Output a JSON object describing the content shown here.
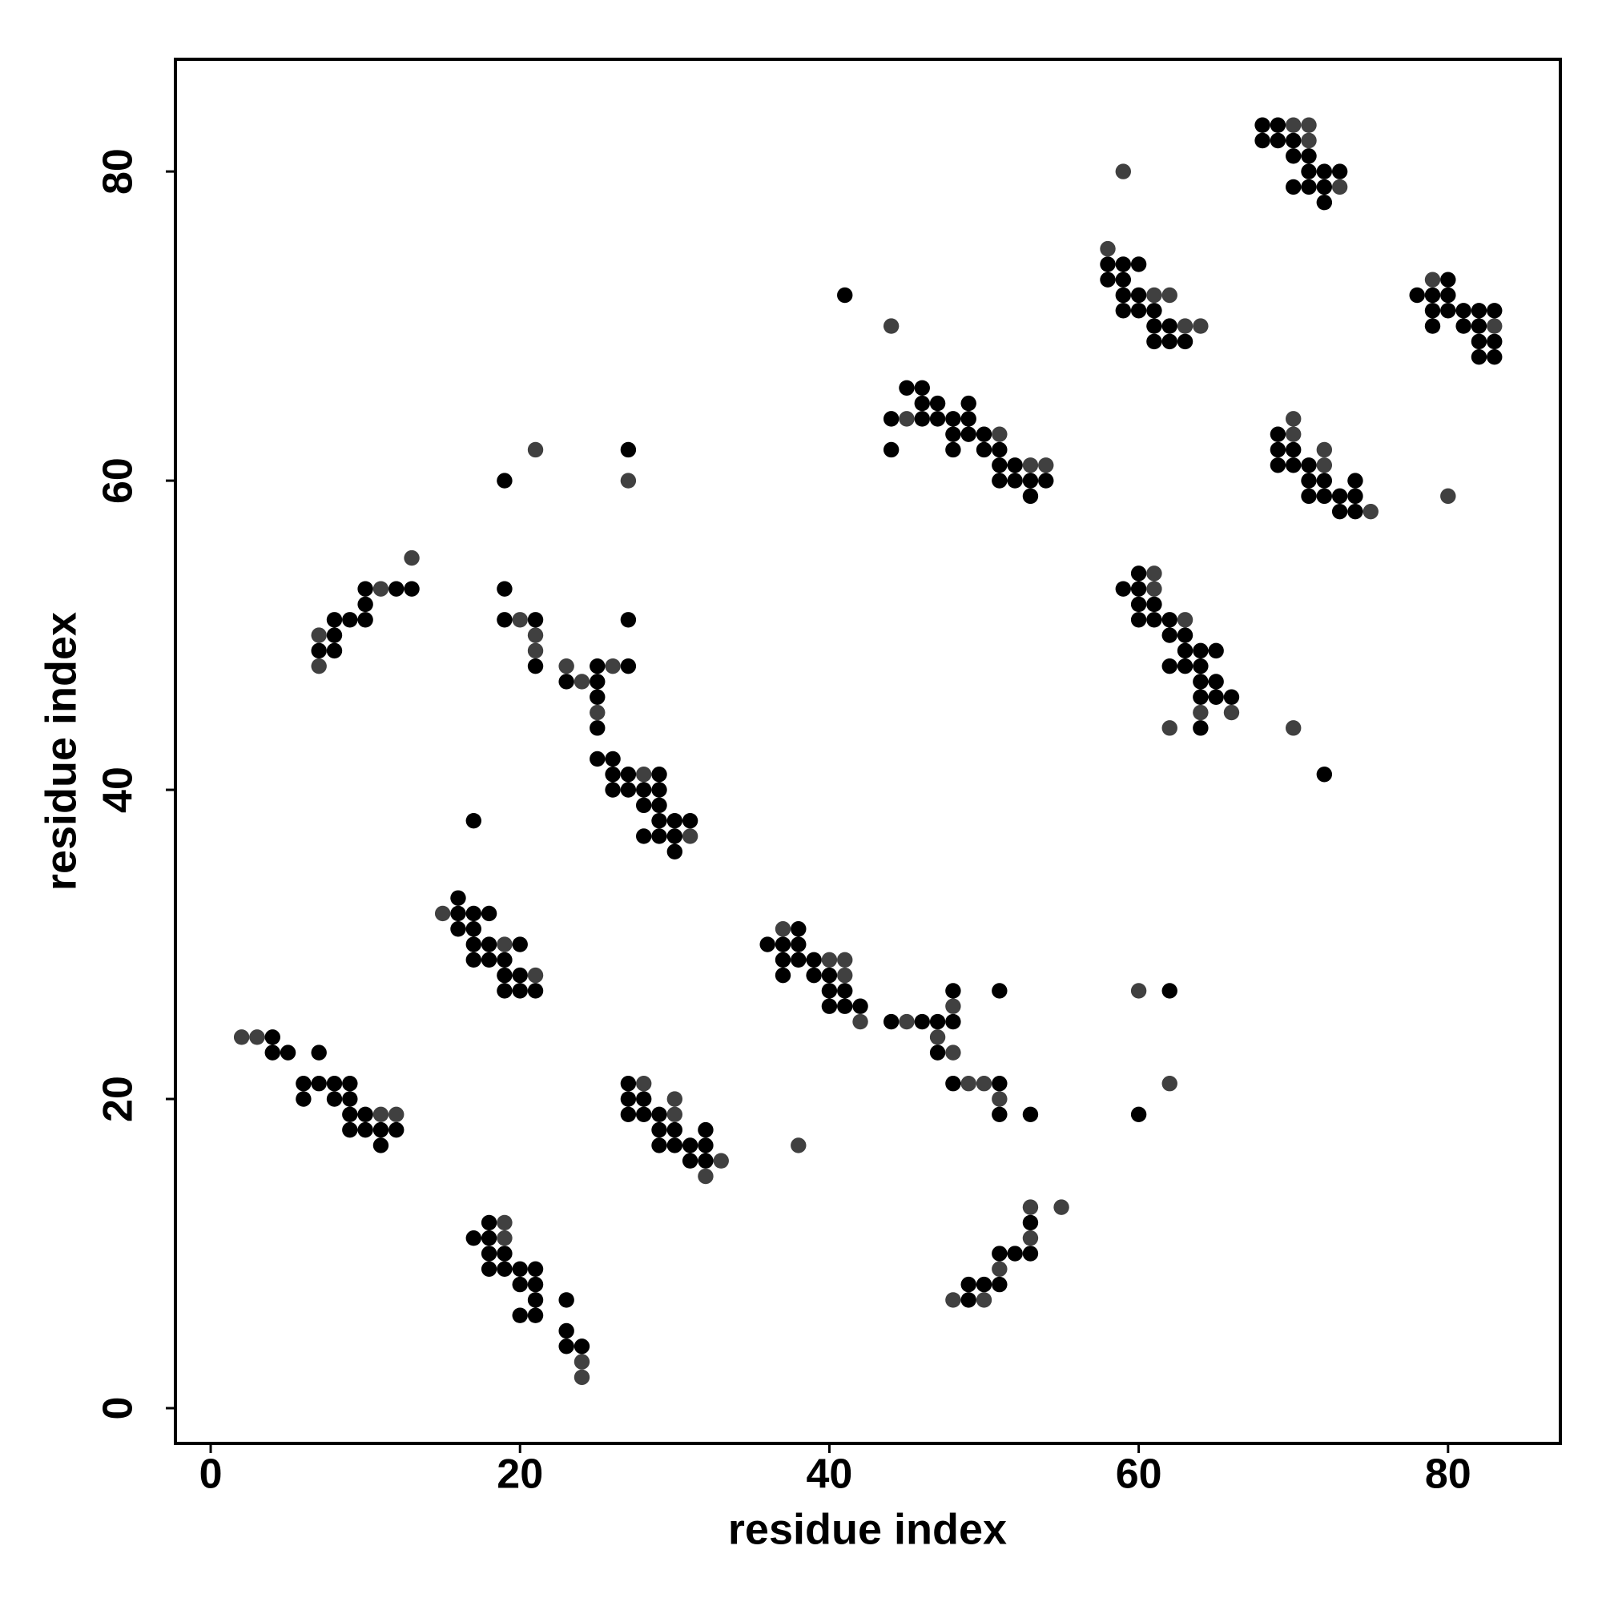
{
  "chart_data": {
    "type": "scatter",
    "xlabel": "residue index",
    "ylabel": "residue index",
    "xlim": [
      -2.28,
      87.26
    ],
    "ylim": [
      -2.28,
      87.26
    ],
    "xticks": [
      0,
      20,
      40,
      60,
      80
    ],
    "yticks": [
      0,
      20,
      40,
      60,
      80
    ],
    "series": [
      {
        "color": "#000000",
        "x": [
          4,
          4,
          5,
          7,
          6,
          7,
          8,
          9,
          6,
          8,
          9,
          9,
          10,
          9,
          10,
          11,
          12,
          11,
          8,
          7,
          8,
          8,
          9,
          10,
          10,
          10,
          12,
          13,
          19,
          19,
          19,
          21,
          21,
          27,
          27,
          27,
          23,
          25,
          25,
          25,
          25,
          25,
          26,
          26,
          27,
          29,
          26,
          27,
          28,
          29,
          28,
          29,
          29,
          30,
          31,
          28,
          29,
          30,
          30,
          17,
          16,
          17,
          18,
          16,
          16,
          17,
          17,
          18,
          20,
          17,
          18,
          19,
          19,
          20,
          19,
          20,
          21,
          27,
          27,
          28,
          27,
          28,
          29,
          29,
          30,
          32,
          29,
          30,
          31,
          32,
          31,
          32,
          17,
          18,
          18,
          18,
          19,
          18,
          19,
          20,
          21,
          20,
          21,
          21,
          20,
          21,
          23,
          23,
          23,
          24,
          36,
          38,
          37,
          38,
          37,
          38,
          39,
          37,
          39,
          40,
          40,
          41,
          40,
          41,
          42,
          44,
          46,
          47,
          48,
          48,
          47,
          48,
          51,
          51,
          51,
          53,
          62,
          60,
          49,
          49,
          50,
          51,
          51,
          52,
          53,
          53,
          41,
          44,
          44,
          45,
          46,
          46,
          47,
          49,
          46,
          47,
          48,
          49,
          48,
          49,
          50,
          48,
          50,
          51,
          51,
          52,
          51,
          52,
          53,
          54,
          53,
          58,
          59,
          60,
          58,
          59,
          59,
          60,
          59,
          60,
          61,
          61,
          62,
          61,
          62,
          63,
          68,
          69,
          68,
          69,
          70,
          70,
          71,
          71,
          72,
          73,
          70,
          71,
          72,
          72,
          78,
          79,
          80,
          79,
          80,
          80,
          81,
          82,
          83,
          79,
          81,
          82,
          82,
          83,
          82,
          83,
          69,
          69,
          70,
          69,
          70,
          71,
          71,
          72,
          74,
          71,
          72,
          73,
          74,
          73,
          74,
          60,
          59,
          60,
          60,
          61,
          60,
          61,
          62,
          62,
          63,
          63,
          64,
          65,
          62,
          63,
          64,
          64,
          65,
          64,
          65,
          66,
          64,
          72
        ],
        "values": [
          24,
          23,
          23,
          23,
          21,
          21,
          21,
          21,
          20,
          20,
          20,
          19,
          19,
          18,
          18,
          18,
          18,
          17,
          50,
          49,
          49,
          51,
          51,
          51,
          52,
          53,
          53,
          53,
          60,
          53,
          51,
          51,
          48,
          62,
          51,
          48,
          47,
          48,
          47,
          46,
          44,
          42,
          42,
          41,
          41,
          41,
          40,
          40,
          40,
          40,
          39,
          39,
          38,
          38,
          38,
          37,
          37,
          37,
          36,
          38,
          32,
          32,
          32,
          33,
          31,
          31,
          30,
          30,
          30,
          29,
          29,
          29,
          28,
          28,
          27,
          27,
          27,
          21,
          20,
          20,
          19,
          19,
          19,
          18,
          18,
          18,
          17,
          17,
          17,
          17,
          16,
          16,
          11,
          12,
          11,
          10,
          10,
          9,
          9,
          9,
          9,
          8,
          8,
          7,
          6,
          6,
          7,
          5,
          4,
          4,
          30,
          31,
          30,
          30,
          29,
          29,
          29,
          28,
          28,
          28,
          27,
          27,
          26,
          26,
          26,
          25,
          25,
          25,
          25,
          27,
          23,
          21,
          21,
          19,
          27,
          19,
          27,
          19,
          7,
          8,
          8,
          8,
          10,
          10,
          10,
          12,
          72,
          64,
          62,
          66,
          66,
          65,
          65,
          65,
          64,
          64,
          64,
          64,
          63,
          63,
          63,
          62,
          62,
          62,
          61,
          61,
          60,
          60,
          60,
          60,
          59,
          74,
          74,
          74,
          73,
          73,
          72,
          72,
          71,
          71,
          71,
          70,
          70,
          69,
          69,
          69,
          83,
          83,
          82,
          82,
          82,
          81,
          81,
          80,
          80,
          80,
          79,
          79,
          79,
          78,
          72,
          72,
          73,
          71,
          72,
          71,
          71,
          71,
          71,
          70,
          70,
          70,
          69,
          69,
          68,
          68,
          63,
          62,
          62,
          61,
          61,
          61,
          60,
          60,
          60,
          59,
          59,
          59,
          59,
          58,
          58,
          54,
          53,
          53,
          52,
          52,
          51,
          51,
          51,
          50,
          50,
          49,
          49,
          49,
          48,
          48,
          48,
          47,
          47,
          46,
          46,
          46,
          44,
          41
        ]
      },
      {
        "color": "#404040",
        "x": [
          2,
          3,
          11,
          12,
          7,
          7,
          11,
          13,
          21,
          20,
          21,
          21,
          27,
          23,
          24,
          26,
          25,
          28,
          31,
          15,
          19,
          21,
          28,
          30,
          30,
          33,
          32,
          38,
          19,
          19,
          24,
          24,
          37,
          40,
          41,
          41,
          42,
          45,
          48,
          47,
          48,
          49,
          50,
          51,
          60,
          62,
          48,
          50,
          51,
          53,
          53,
          55,
          44,
          45,
          51,
          53,
          54,
          58,
          61,
          62,
          63,
          64,
          59,
          70,
          71,
          71,
          73,
          79,
          83,
          70,
          70,
          72,
          72,
          75,
          80,
          61,
          61,
          63,
          64,
          66,
          62,
          70
        ],
        "values": [
          24,
          24,
          19,
          19,
          50,
          48,
          53,
          55,
          62,
          51,
          50,
          49,
          60,
          48,
          47,
          48,
          45,
          41,
          37,
          32,
          30,
          28,
          21,
          20,
          19,
          16,
          15,
          17,
          12,
          11,
          3,
          2,
          31,
          29,
          29,
          28,
          25,
          25,
          26,
          24,
          23,
          21,
          21,
          20,
          27,
          21,
          7,
          7,
          9,
          11,
          13,
          13,
          70,
          64,
          63,
          61,
          61,
          75,
          72,
          72,
          70,
          70,
          80,
          83,
          83,
          82,
          79,
          73,
          70,
          64,
          63,
          62,
          61,
          58,
          59,
          54,
          53,
          51,
          45,
          45,
          44,
          44
        ]
      }
    ]
  }
}
